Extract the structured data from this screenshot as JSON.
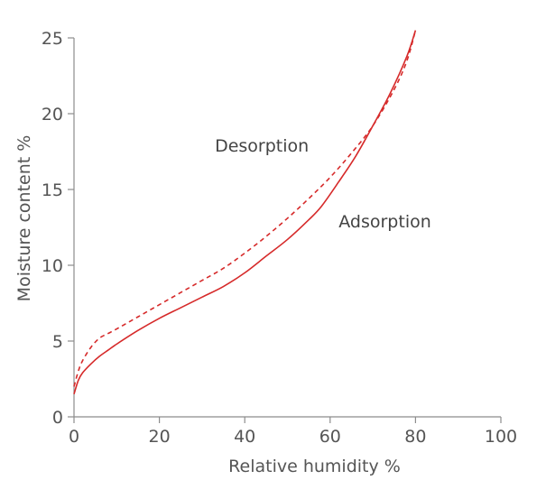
{
  "chart_data": {
    "type": "line",
    "title": "",
    "xlabel": "Relative humidity %",
    "ylabel": "Moisture content %",
    "xlim": [
      0,
      100
    ],
    "ylim": [
      0,
      25
    ],
    "xticks": [
      "0",
      "20",
      "40",
      "60",
      "80",
      "100"
    ],
    "yticks": [
      "0",
      "5",
      "10",
      "15",
      "20",
      "25"
    ],
    "grid": false,
    "series": [
      {
        "name": "Adsorption",
        "style": "solid",
        "color": "#d62a2a",
        "x": [
          0,
          1,
          2,
          4,
          6,
          8,
          10,
          15,
          20,
          25,
          30,
          35,
          40,
          45,
          50,
          55,
          58,
          62,
          66,
          70,
          74,
          78,
          80
        ],
        "y": [
          1.5,
          2.4,
          2.9,
          3.5,
          4.0,
          4.4,
          4.8,
          5.7,
          6.5,
          7.2,
          7.9,
          8.6,
          9.5,
          10.6,
          11.7,
          13.0,
          13.9,
          15.5,
          17.2,
          19.2,
          21.3,
          23.8,
          25.5
        ]
      },
      {
        "name": "Desorption",
        "style": "dashed",
        "color": "#d62a2a",
        "x": [
          0,
          1,
          2,
          4,
          6,
          8,
          10,
          15,
          20,
          25,
          30,
          35,
          40,
          45,
          50,
          55,
          60,
          65,
          70,
          75,
          78,
          80
        ],
        "y": [
          2.0,
          3.0,
          3.7,
          4.6,
          5.2,
          5.5,
          5.8,
          6.6,
          7.4,
          8.2,
          9.0,
          9.8,
          10.8,
          11.9,
          13.1,
          14.4,
          15.8,
          17.4,
          19.2,
          21.6,
          23.5,
          25.5
        ]
      }
    ],
    "annotations": [
      {
        "text": "Desorption",
        "x": 33,
        "y": 17.5
      },
      {
        "text": "Adsorption",
        "x": 62,
        "y": 12.5
      }
    ]
  }
}
